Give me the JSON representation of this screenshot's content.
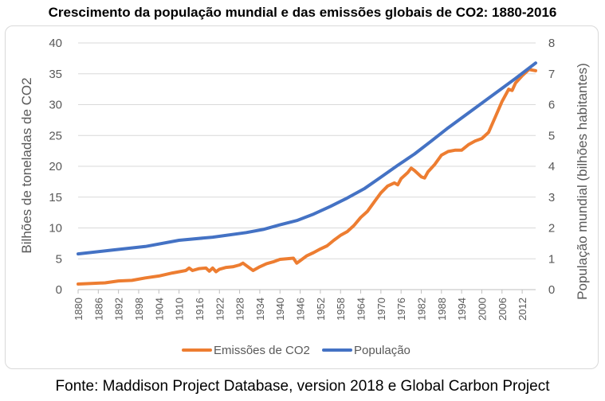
{
  "chart_data": {
    "type": "line",
    "title": "Crescimento da população mundial e das emissões globais de CO2: 1880-2016",
    "ylabel": "Bilhões de toneladas de CO2",
    "y2label": "População mundial (bilhões habitantes)",
    "ylim": [
      0,
      40
    ],
    "y2lim": [
      0,
      8
    ],
    "yticks": [
      "0",
      "5",
      "10",
      "15",
      "20",
      "25",
      "30",
      "35",
      "40"
    ],
    "y2ticks": [
      "0",
      "1",
      "2",
      "3",
      "4",
      "5",
      "6",
      "7",
      "8"
    ],
    "xlim": [
      1880,
      2016
    ],
    "xticks": [
      "1880",
      "1886",
      "1892",
      "1898",
      "1904",
      "1910",
      "1916",
      "1922",
      "1928",
      "1934",
      "1940",
      "1946",
      "1952",
      "1958",
      "1964",
      "1970",
      "1976",
      "1982",
      "1988",
      "1994",
      "2000",
      "2006",
      "2012"
    ],
    "grid": true,
    "legend_position": "bottom",
    "series": [
      {
        "name": "Emissões de CO2",
        "color": "#ed7d31",
        "axis": "left",
        "x": [
          1880,
          1884,
          1888,
          1892,
          1896,
          1900,
          1904,
          1908,
          1912,
          1913,
          1914,
          1916,
          1918,
          1919,
          1920,
          1921,
          1922,
          1924,
          1926,
          1928,
          1929,
          1930,
          1932,
          1934,
          1936,
          1938,
          1940,
          1942,
          1944,
          1945,
          1946,
          1948,
          1950,
          1952,
          1954,
          1956,
          1958,
          1960,
          1962,
          1964,
          1966,
          1968,
          1970,
          1972,
          1974,
          1975,
          1976,
          1978,
          1979,
          1980,
          1982,
          1983,
          1984,
          1986,
          1988,
          1990,
          1992,
          1994,
          1996,
          1998,
          2000,
          2002,
          2004,
          2006,
          2008,
          2009,
          2010,
          2012,
          2014,
          2016
        ],
        "values": [
          0.9,
          1.0,
          1.1,
          1.4,
          1.5,
          1.9,
          2.2,
          2.7,
          3.1,
          3.5,
          3.1,
          3.4,
          3.5,
          3.0,
          3.5,
          2.9,
          3.3,
          3.6,
          3.7,
          4.0,
          4.3,
          3.9,
          3.1,
          3.7,
          4.2,
          4.5,
          4.9,
          5.0,
          5.1,
          4.3,
          4.7,
          5.5,
          6.0,
          6.6,
          7.1,
          8.0,
          8.8,
          9.4,
          10.4,
          11.7,
          12.7,
          14.2,
          15.7,
          16.8,
          17.3,
          17.0,
          18.0,
          19.0,
          19.7,
          19.3,
          18.3,
          18.1,
          19.1,
          20.3,
          21.8,
          22.4,
          22.6,
          22.6,
          23.5,
          24.1,
          24.5,
          25.5,
          28.0,
          30.5,
          32.5,
          32.3,
          33.5,
          34.7,
          35.7,
          35.5
        ]
      },
      {
        "name": "População",
        "color": "#4472c4",
        "axis": "right",
        "x": [
          1880,
          1890,
          1900,
          1910,
          1920,
          1930,
          1935,
          1940,
          1945,
          1950,
          1955,
          1960,
          1965,
          1970,
          1975,
          1980,
          1985,
          1990,
          1995,
          2000,
          2005,
          2010,
          2016
        ],
        "values": [
          1.16,
          1.28,
          1.4,
          1.6,
          1.7,
          1.85,
          1.95,
          2.1,
          2.24,
          2.45,
          2.7,
          2.97,
          3.27,
          3.65,
          4.03,
          4.4,
          4.82,
          5.25,
          5.65,
          6.05,
          6.45,
          6.85,
          7.35
        ]
      }
    ]
  },
  "source_note": "Fonte: Maddison Project Database, version 2018 e Global Carbon Project"
}
